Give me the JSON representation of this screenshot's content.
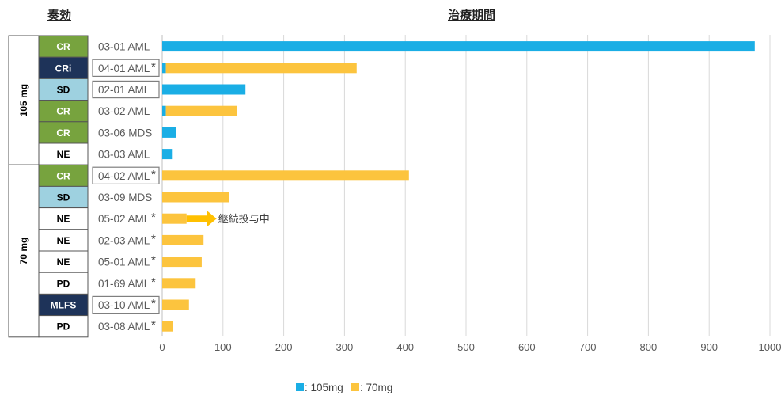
{
  "headers": {
    "response": "奏効",
    "duration": "治療期間"
  },
  "annotation": "継続投与中",
  "colors": {
    "mg105": "#1aaee5",
    "mg70": "#fcc43e",
    "green": "#77a33e",
    "light": "#9ed1e0",
    "navy": "#1e3359",
    "grid": "#d9d9d9",
    "arrow": "#ffc000"
  },
  "chart_data": {
    "type": "bar",
    "orientation": "horizontal",
    "stacked": true,
    "xlim": [
      0,
      1000
    ],
    "xticks": [
      "0",
      "100",
      "200",
      "300",
      "400",
      "500",
      "600",
      "700",
      "800",
      "900",
      "1000"
    ],
    "legend": {
      "position": "bottom-center",
      "entries": [
        {
          "key": "mg105",
          "label": ": 105mg"
        },
        {
          "key": "mg70",
          "label": ": 70mg"
        }
      ]
    },
    "groups": [
      {
        "label": "105 mg",
        "count": 6
      },
      {
        "label": "70 mg",
        "count": 8
      }
    ],
    "rows": [
      {
        "patient": "03-01 AML",
        "response": "CR",
        "mg105": 975,
        "mg70": 0,
        "boxed": false,
        "asterisk": false,
        "ongoing": false
      },
      {
        "patient": "04-01 AML",
        "response": "CRi",
        "mg105": 6,
        "mg70": 314,
        "boxed": true,
        "asterisk": true,
        "ongoing": false
      },
      {
        "patient": "02-01 AML",
        "response": "SD",
        "mg105": 137,
        "mg70": 0,
        "boxed": true,
        "asterisk": false,
        "ongoing": false
      },
      {
        "patient": "03-02 AML",
        "response": "CR",
        "mg105": 6,
        "mg70": 117,
        "boxed": false,
        "asterisk": false,
        "ongoing": false
      },
      {
        "patient": "03-06 MDS",
        "response": "CR",
        "mg105": 23,
        "mg70": 0,
        "boxed": false,
        "asterisk": false,
        "ongoing": false
      },
      {
        "patient": "03-03 AML",
        "response": "NE",
        "mg105": 16,
        "mg70": 0,
        "boxed": false,
        "asterisk": false,
        "ongoing": false
      },
      {
        "patient": "04-02 AML",
        "response": "CR",
        "mg105": 0,
        "mg70": 406,
        "boxed": true,
        "asterisk": true,
        "ongoing": false
      },
      {
        "patient": "03-09 MDS",
        "response": "SD",
        "mg105": 0,
        "mg70": 110,
        "boxed": false,
        "asterisk": false,
        "ongoing": false
      },
      {
        "patient": "05-02 AML",
        "response": "NE",
        "mg105": 0,
        "mg70": 40,
        "boxed": false,
        "asterisk": true,
        "ongoing": true
      },
      {
        "patient": "02-03 AML",
        "response": "NE",
        "mg105": 0,
        "mg70": 68,
        "boxed": false,
        "asterisk": true,
        "ongoing": false
      },
      {
        "patient": "05-01 AML",
        "response": "NE",
        "mg105": 0,
        "mg70": 65,
        "boxed": false,
        "asterisk": true,
        "ongoing": false
      },
      {
        "patient": "01-69 AML",
        "response": "PD",
        "mg105": 0,
        "mg70": 55,
        "boxed": false,
        "asterisk": true,
        "ongoing": false
      },
      {
        "patient": "03-10 AML",
        "response": "MLFS",
        "mg105": 0,
        "mg70": 44,
        "boxed": true,
        "asterisk": true,
        "ongoing": false
      },
      {
        "patient": "03-08 AML",
        "response": "PD",
        "mg105": 0,
        "mg70": 17,
        "boxed": false,
        "asterisk": true,
        "ongoing": false
      }
    ]
  }
}
